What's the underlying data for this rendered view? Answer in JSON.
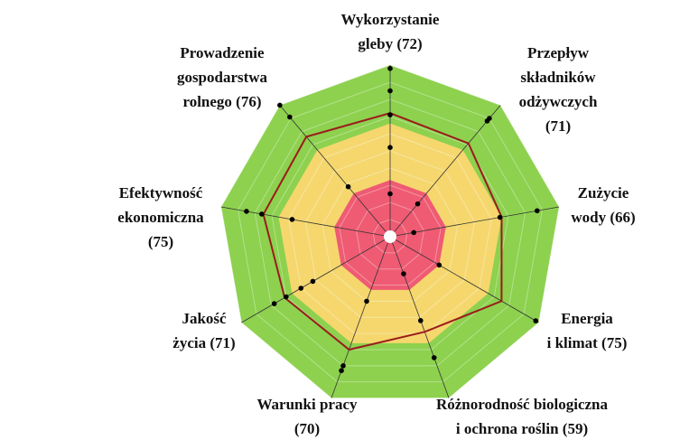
{
  "chart_data": {
    "type": "radar",
    "categories": [
      [
        "Wykorzystanie",
        "gleby (72)"
      ],
      [
        "Przepływ",
        "składników",
        "odżywczych",
        "(71)"
      ],
      [
        "Zużycie",
        "wody (66)"
      ],
      [
        "Energia",
        "i klimat (75)"
      ],
      [
        "Różnorodność biologiczna",
        "i ochrona roślin (59)"
      ],
      [
        "Warunki pracy",
        "(70)"
      ],
      [
        "Jakość",
        "życia (71)"
      ],
      [
        "Efektywność",
        "ekonomiczna",
        "(75)"
      ],
      [
        "Prowadzenie",
        "gospodarstwa",
        "rolnego (76)"
      ]
    ],
    "values": [
      72,
      71,
      66,
      75,
      59,
      70,
      71,
      75,
      76
    ],
    "color": "#9b1b1b",
    "indicators": [
      [
        98,
        85,
        71,
        52,
        25
      ],
      [
        90,
        88,
        25
      ],
      [
        87,
        65,
        14
      ],
      [
        98,
        33
      ],
      [
        75,
        52,
        23
      ],
      [
        83,
        80,
        40
      ],
      [
        78,
        70,
        60,
        52
      ],
      [
        85,
        76,
        58
      ],
      [
        100,
        91,
        38
      ]
    ],
    "indicator_color": "#000000",
    "rlim": [
      0,
      100
    ],
    "rticks": [
      10,
      20,
      30,
      40,
      50,
      60,
      70,
      80,
      90,
      100
    ],
    "bands": [
      {
        "from": 66,
        "to": 100,
        "color": "#8dd14f"
      },
      {
        "from": 33,
        "to": 66,
        "color": "#f5d76e"
      },
      {
        "from": 0,
        "to": 33,
        "color": "#ef5b73"
      }
    ]
  }
}
